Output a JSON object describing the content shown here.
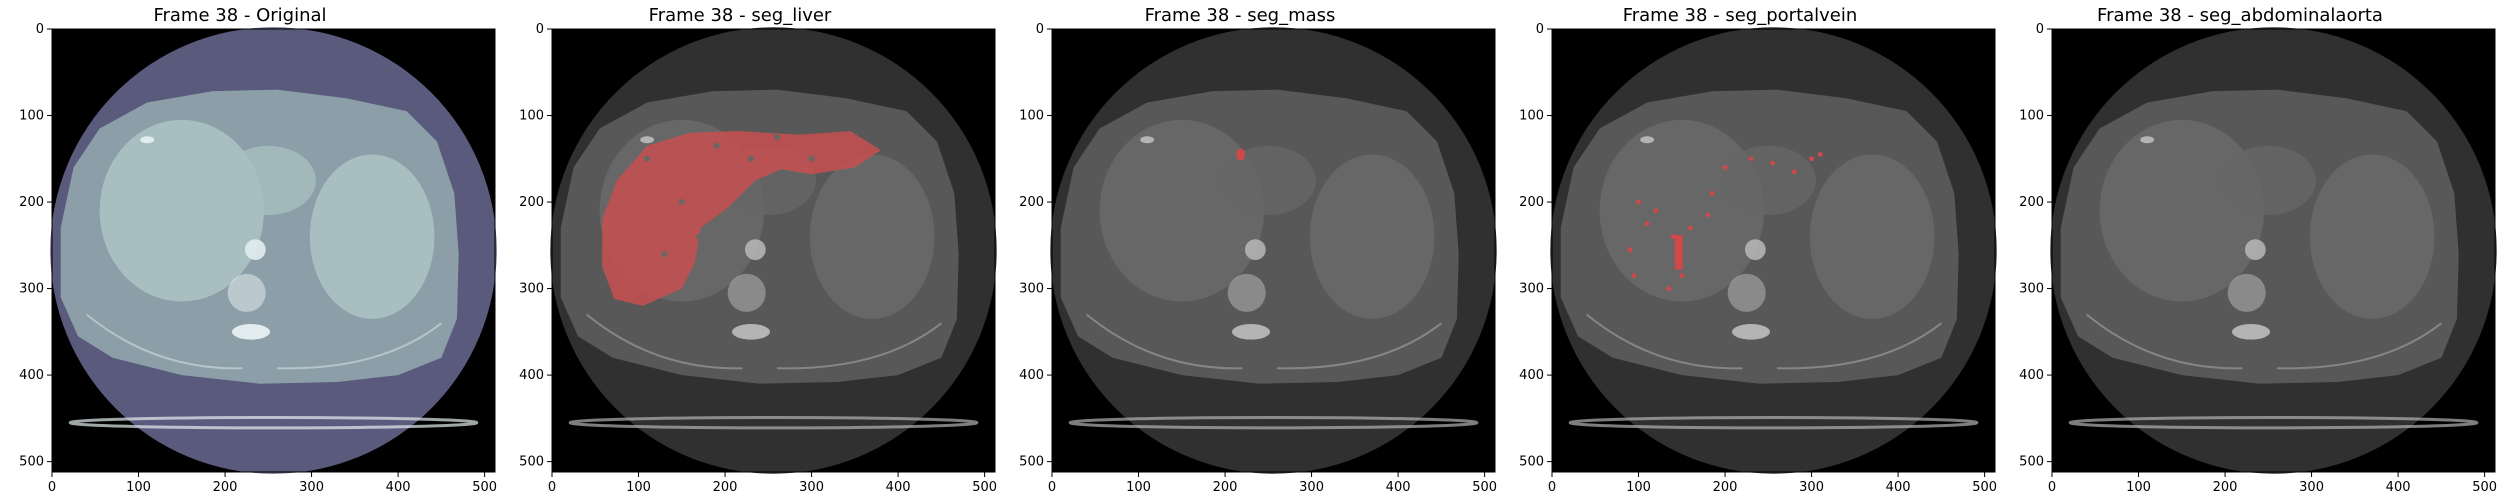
{
  "figure": {
    "frame_label": "Frame 38",
    "axis_ticks": [
      "0",
      "100",
      "200",
      "300",
      "400",
      "500"
    ],
    "image_size": [
      512,
      512
    ],
    "panels": [
      {
        "id": "original",
        "title": "Frame 38 - Original",
        "colormap": "bone",
        "overlay": null
      },
      {
        "id": "liver",
        "title": "Frame 38 - seg_liver",
        "colormap": "gray",
        "overlay": "liver",
        "overlay_color": "#c85050"
      },
      {
        "id": "mass",
        "title": "Frame 38 - seg_mass",
        "colormap": "gray",
        "overlay": "mass",
        "overlay_color": "#d04848"
      },
      {
        "id": "portalvein",
        "title": "Frame 38 - seg_portalvein",
        "colormap": "gray",
        "overlay": "portalvein",
        "overlay_color": "#d04848"
      },
      {
        "id": "abdominalaorta",
        "title": "Frame 38 - seg_abdominalaorta",
        "colormap": "gray",
        "overlay": null
      }
    ]
  },
  "colors": {
    "original_fov": "#5a5a7c",
    "original_body": "#8c9ea8",
    "original_organ": "#a7bfc0",
    "original_bone": "#e2ecee",
    "gray_fov": "#303030",
    "gray_body": "#585858",
    "gray_organ": "#676767",
    "gray_bone": "#b4b4b4",
    "background": "#000000"
  }
}
